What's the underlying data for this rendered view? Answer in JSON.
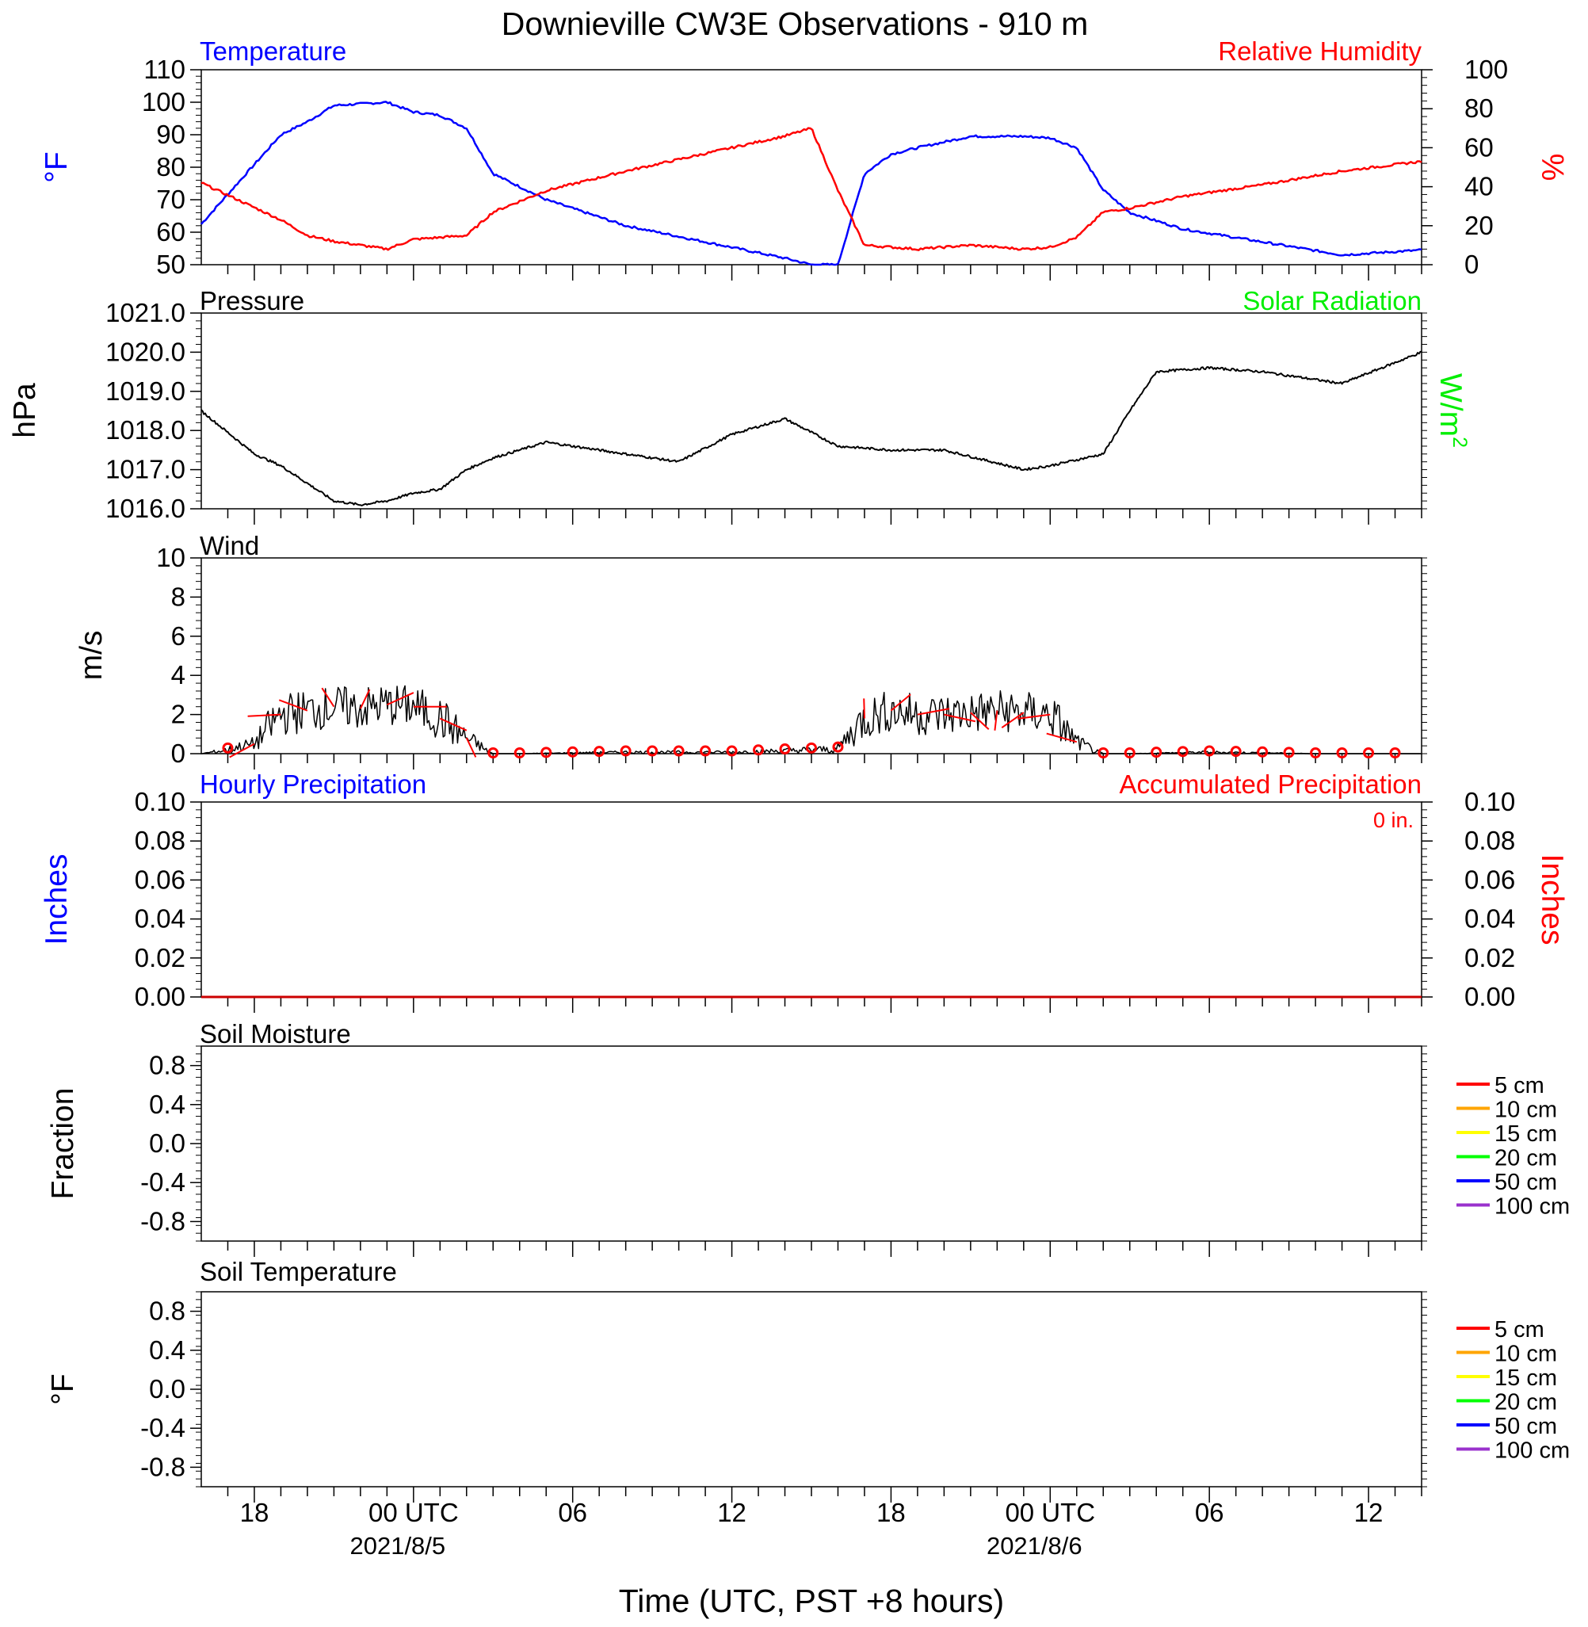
{
  "figure": {
    "title": "Downieville CW3E Observations - 910 m",
    "x_axis_label": "Time (UTC, PST +8 hours)",
    "x_tick_labels": [
      "18",
      "00 UTC",
      "06",
      "12",
      "18",
      "00 UTC",
      "06",
      "12"
    ],
    "x_date_labels": [
      "2021/8/5",
      "2021/8/6"
    ]
  },
  "chart_data": [
    {
      "type": "line",
      "panel": "temperature-humidity",
      "title_left": "Temperature",
      "title_right": "Relative Humidity",
      "ylabel_left": "°F",
      "ylabel_right": "%",
      "ylim_left": [
        50,
        110
      ],
      "ylim_right": [
        0,
        100
      ],
      "yticks_left": [
        "50",
        "60",
        "70",
        "80",
        "90",
        "100",
        "110"
      ],
      "yticks_right": [
        "0",
        "20",
        "40",
        "60",
        "80",
        "100"
      ],
      "x_hours_utc": [
        -8,
        -5,
        -4,
        -3,
        -1,
        0,
        1,
        2,
        3,
        5,
        8,
        11,
        14,
        15,
        16,
        17,
        18,
        19,
        21,
        23,
        24,
        25,
        26,
        27,
        29,
        32,
        35,
        38
      ],
      "series": [
        {
          "name": "Temperature",
          "color": "#0000ff",
          "axis": "left",
          "values": [
            62.5,
            90,
            94,
            99,
            100,
            97,
            96,
            92,
            78,
            70,
            62,
            57,
            52,
            50,
            50,
            78,
            84,
            86,
            89.5,
            89.5,
            89,
            86,
            73,
            66,
            61,
            57,
            53,
            54.5
          ]
        },
        {
          "name": "Relative Humidity",
          "color": "#ff0000",
          "axis": "right",
          "values": [
            42,
            23,
            15,
            12,
            8,
            13,
            14,
            15,
            27,
            38,
            48,
            57,
            66,
            70,
            38,
            10,
            9,
            8,
            10,
            8,
            9,
            14,
            27,
            29,
            35,
            41,
            48,
            53
          ]
        }
      ]
    },
    {
      "type": "line",
      "panel": "pressure",
      "title_left": "Pressure",
      "title_right": "Solar Radiation",
      "ylabel_left": "hPa",
      "ylabel_right": "W/m",
      "ylabel_right_superscript": "2",
      "ylim": [
        1016.0,
        1021.0
      ],
      "yticks": [
        "1016.0",
        "1017.0",
        "1018.0",
        "1019.0",
        "1020.0",
        "1021.0"
      ],
      "x_hours_utc": [
        -8,
        -6,
        -5,
        -3,
        -2,
        -1,
        0,
        1,
        2,
        3,
        5,
        7,
        10,
        12,
        14,
        16,
        18,
        20,
        23,
        24,
        26,
        27,
        28,
        30,
        32,
        35,
        38
      ],
      "series": [
        {
          "name": "Pressure",
          "color": "#000000",
          "values": [
            1018.5,
            1017.4,
            1017.1,
            1016.2,
            1016.1,
            1016.2,
            1016.4,
            1016.5,
            1017.0,
            1017.3,
            1017.7,
            1017.5,
            1017.2,
            1017.9,
            1018.3,
            1017.6,
            1017.5,
            1017.5,
            1017.0,
            1017.1,
            1017.4,
            1018.5,
            1019.5,
            1019.6,
            1019.5,
            1019.2,
            1020.0
          ]
        }
      ]
    },
    {
      "type": "line",
      "panel": "wind",
      "title_left": "Wind",
      "ylabel_left": "m/s",
      "ylim": [
        0,
        10
      ],
      "yticks": [
        "0",
        "2",
        "4",
        "6",
        "8",
        "10"
      ],
      "x_hours_utc": [
        -8,
        -6,
        -5,
        -4,
        -3,
        -2,
        -1,
        0,
        1,
        2,
        3,
        4,
        8,
        12,
        16,
        17,
        18,
        19,
        20,
        22,
        24,
        25,
        26,
        27,
        30,
        34,
        38
      ],
      "series": [
        {
          "name": "Wind speed",
          "color": "#000000",
          "values": [
            0,
            0.5,
            2,
            2.2,
            2.4,
            2.3,
            2.5,
            2.4,
            1.8,
            0.8,
            0,
            0,
            0.1,
            0.1,
            0.3,
            1.8,
            2.2,
            2.0,
            2.0,
            2.2,
            2.0,
            0.6,
            0,
            0,
            0.1,
            0,
            0
          ]
        }
      ],
      "barbs_color": "#ff0000",
      "calm_marker": "circle"
    },
    {
      "type": "line",
      "panel": "precipitation",
      "title_left": "Hourly Precipitation",
      "title_right": "Accumulated Precipitation",
      "accumulated_total": "0 in.",
      "ylabel_left": "Inches",
      "ylabel_right": "Inches",
      "ylim": [
        0,
        0.1
      ],
      "yticks": [
        "0.00",
        "0.02",
        "0.04",
        "0.06",
        "0.08",
        "0.10"
      ],
      "series": [
        {
          "name": "Hourly Precipitation",
          "color": "#0000ff",
          "values": [
            0,
            0
          ]
        },
        {
          "name": "Accumulated Precipitation",
          "color": "#cc0000",
          "values": [
            0,
            0
          ]
        }
      ]
    },
    {
      "type": "line",
      "panel": "soil-moisture",
      "title_left": "Soil Moisture",
      "ylabel_left": "Fraction",
      "ylim": [
        -1,
        1
      ],
      "yticks": [
        "-0.8",
        "-0.4",
        "0.0",
        "0.4",
        "0.8"
      ],
      "legend": [
        {
          "label": "5 cm",
          "color": "#ff0000"
        },
        {
          "label": "10 cm",
          "color": "#ffa500"
        },
        {
          "label": "15 cm",
          "color": "#ffff00"
        },
        {
          "label": "20 cm",
          "color": "#00ff00"
        },
        {
          "label": "50 cm",
          "color": "#0000ff"
        },
        {
          "label": "100 cm",
          "color": "#9a32cd"
        }
      ]
    },
    {
      "type": "line",
      "panel": "soil-temperature",
      "title_left": "Soil Temperature",
      "ylabel_left": "°F",
      "ylim": [
        -1,
        1
      ],
      "yticks": [
        "-0.8",
        "-0.4",
        "0.0",
        "0.4",
        "0.8"
      ],
      "legend": [
        {
          "label": "5 cm",
          "color": "#ff0000"
        },
        {
          "label": "10 cm",
          "color": "#ffa500"
        },
        {
          "label": "15 cm",
          "color": "#ffff00"
        },
        {
          "label": "20 cm",
          "color": "#00ff00"
        },
        {
          "label": "50 cm",
          "color": "#0000ff"
        },
        {
          "label": "100 cm",
          "color": "#9a32cd"
        }
      ]
    }
  ]
}
